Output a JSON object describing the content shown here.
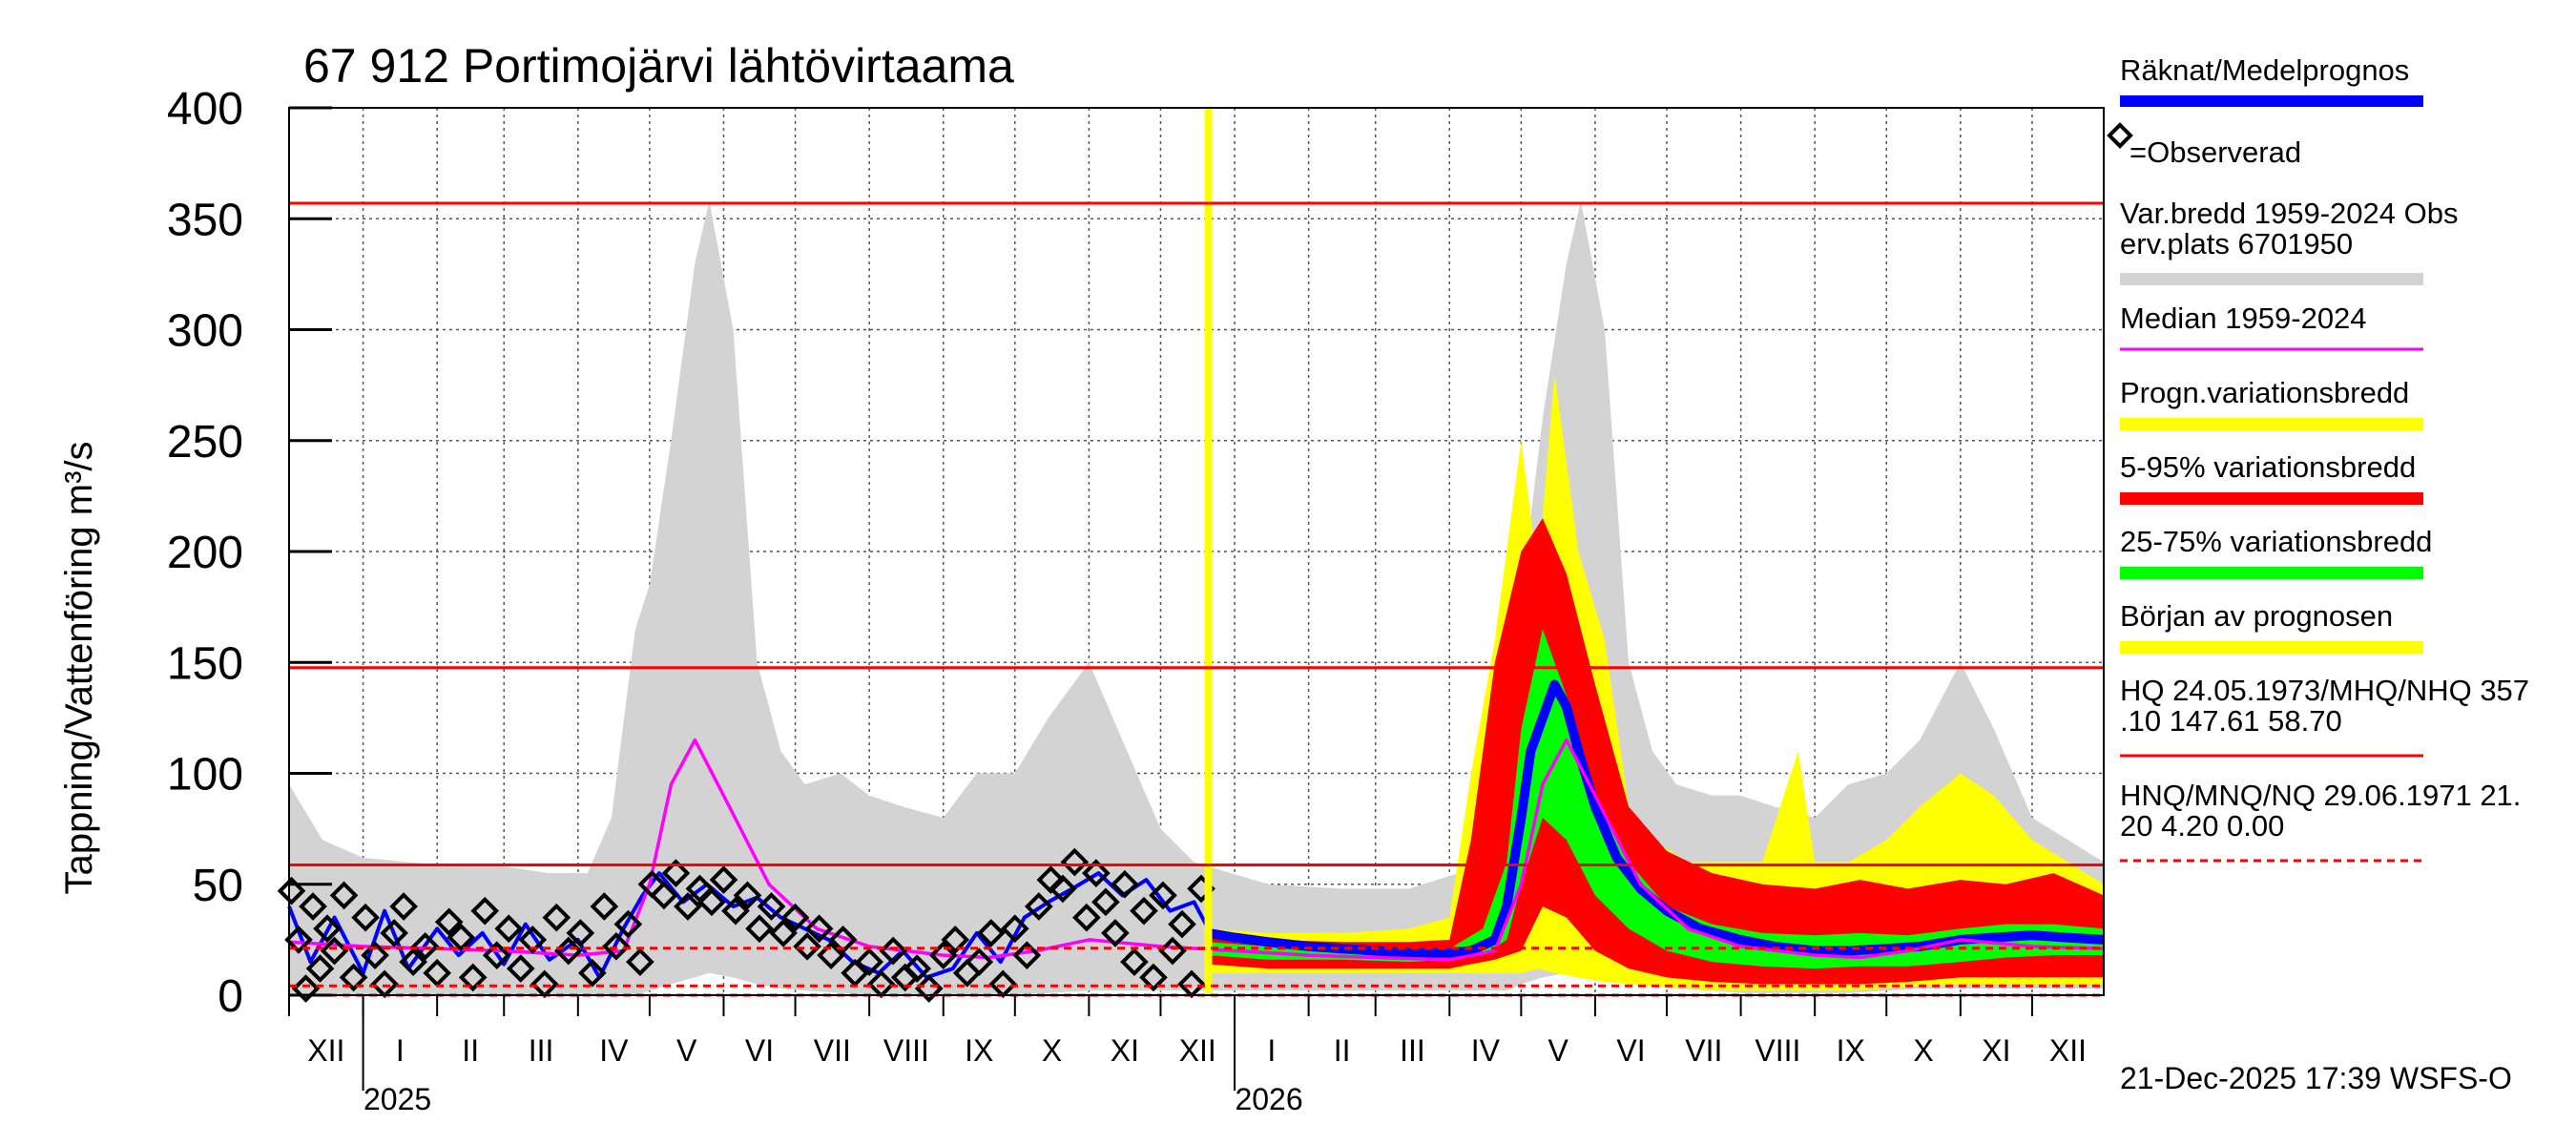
{
  "chart_data": {
    "type": "area",
    "title": "67 912 Portimojärvi lähtövirtaama",
    "ylabel": "Tappning/Vattenföring m³/s",
    "ylim": [
      0,
      400
    ],
    "y_ticks": [
      0,
      50,
      100,
      150,
      200,
      250,
      300,
      350,
      400
    ],
    "x_range": [
      "2024-12-01",
      "2026-12-31"
    ],
    "grid": true,
    "legend_position": "right",
    "months": [
      {
        "label": "XII",
        "start": "2024-12-01"
      },
      {
        "label": "I",
        "start": "2025-01-01"
      },
      {
        "label": "II",
        "start": "2025-02-01"
      },
      {
        "label": "III",
        "start": "2025-03-01"
      },
      {
        "label": "IV",
        "start": "2025-04-01"
      },
      {
        "label": "V",
        "start": "2025-05-01"
      },
      {
        "label": "VI",
        "start": "2025-06-01"
      },
      {
        "label": "VII",
        "start": "2025-07-01"
      },
      {
        "label": "VIII",
        "start": "2025-08-01"
      },
      {
        "label": "IX",
        "start": "2025-09-01"
      },
      {
        "label": "X",
        "start": "2025-10-01"
      },
      {
        "label": "XI",
        "start": "2025-11-01"
      },
      {
        "label": "XII",
        "start": "2025-12-01"
      },
      {
        "label": "I",
        "start": "2026-01-01"
      },
      {
        "label": "II",
        "start": "2026-02-01"
      },
      {
        "label": "III",
        "start": "2026-03-01"
      },
      {
        "label": "IV",
        "start": "2026-04-01"
      },
      {
        "label": "V",
        "start": "2026-05-01"
      },
      {
        "label": "VI",
        "start": "2026-06-01"
      },
      {
        "label": "VII",
        "start": "2026-07-01"
      },
      {
        "label": "VIII",
        "start": "2026-08-01"
      },
      {
        "label": "IX",
        "start": "2026-09-01"
      },
      {
        "label": "X",
        "start": "2026-10-01"
      },
      {
        "label": "XI",
        "start": "2026-11-01"
      },
      {
        "label": "XII",
        "start": "2026-12-01"
      }
    ],
    "years": [
      {
        "label": "2025",
        "date": "2025-01-01"
      },
      {
        "label": "2026",
        "date": "2026-01-01"
      }
    ],
    "forecast_start": "2025-12-21",
    "reference_lines": [
      {
        "name": "HQ",
        "value": 357,
        "style": "solid"
      },
      {
        "name": "MHQ",
        "value": 147.61,
        "style": "solid"
      },
      {
        "name": "NHQ",
        "value": 58.7,
        "style": "solid"
      },
      {
        "name": "HNQ",
        "value": 21.2,
        "style": "dashed"
      },
      {
        "name": "MNQ",
        "value": 4.2,
        "style": "dashed"
      },
      {
        "name": "NQ",
        "value": 0.0,
        "style": "dashed"
      }
    ],
    "historical_range": {
      "x": [
        "2024-12-01",
        "2024-12-15",
        "2025-01-01",
        "2025-01-20",
        "2025-02-10",
        "2025-03-01",
        "2025-03-20",
        "2025-04-05",
        "2025-04-15",
        "2025-04-25",
        "2025-05-01",
        "2025-05-10",
        "2025-05-20",
        "2025-05-26",
        "2025-06-05",
        "2025-06-15",
        "2025-06-25",
        "2025-07-05",
        "2025-07-20",
        "2025-08-01",
        "2025-08-15",
        "2025-09-01",
        "2025-09-15",
        "2025-10-01",
        "2025-10-15",
        "2025-11-01",
        "2025-11-15",
        "2025-12-01",
        "2025-12-15",
        "2026-01-15",
        "2026-02-15",
        "2026-03-15",
        "2026-04-05",
        "2026-04-15",
        "2026-04-25",
        "2026-05-01",
        "2026-05-10",
        "2026-05-20",
        "2026-05-26",
        "2026-06-05",
        "2026-06-15",
        "2026-06-25",
        "2026-07-05",
        "2026-07-20",
        "2026-08-01",
        "2026-08-15",
        "2026-09-01",
        "2026-09-15",
        "2026-10-01",
        "2026-10-15",
        "2026-11-01",
        "2026-11-15",
        "2026-12-01",
        "2026-12-31"
      ],
      "upper": [
        95,
        70,
        62,
        60,
        58,
        58,
        55,
        55,
        80,
        165,
        185,
        250,
        330,
        358,
        300,
        150,
        110,
        95,
        100,
        90,
        85,
        80,
        100,
        100,
        125,
        150,
        115,
        75,
        60,
        50,
        48,
        48,
        55,
        85,
        150,
        180,
        260,
        330,
        358,
        300,
        150,
        110,
        95,
        90,
        90,
        85,
        80,
        95,
        100,
        115,
        150,
        120,
        80,
        60
      ],
      "lower": [
        0,
        0,
        0,
        0,
        0,
        0,
        0,
        0,
        0,
        0,
        2,
        5,
        8,
        10,
        8,
        5,
        3,
        2,
        1,
        0,
        0,
        0,
        0,
        0,
        1,
        2,
        2,
        2,
        2,
        2,
        2,
        2,
        2,
        2,
        2,
        5,
        8,
        10,
        12,
        10,
        8,
        5,
        3,
        2,
        1,
        1,
        1,
        1,
        2,
        3,
        3,
        3,
        3,
        3
      ]
    },
    "median": {
      "x": [
        "2024-12-01",
        "2025-01-01",
        "2025-02-01",
        "2025-03-01",
        "2025-04-01",
        "2025-04-20",
        "2025-05-01",
        "2025-05-10",
        "2025-05-20",
        "2025-06-01",
        "2025-06-20",
        "2025-07-10",
        "2025-08-01",
        "2025-09-01",
        "2025-09-20",
        "2025-10-10",
        "2025-11-01",
        "2025-12-01",
        "2026-01-01",
        "2026-02-01",
        "2026-03-01",
        "2026-04-01",
        "2026-04-20",
        "2026-05-01",
        "2026-05-10",
        "2026-05-20",
        "2026-06-01",
        "2026-06-20",
        "2026-07-10",
        "2026-08-01",
        "2026-09-01",
        "2026-09-20",
        "2026-10-10",
        "2026-11-01",
        "2026-12-01",
        "2026-12-31"
      ],
      "values": [
        24,
        22,
        21,
        20,
        18,
        20,
        50,
        95,
        115,
        90,
        50,
        30,
        22,
        18,
        17,
        20,
        25,
        22,
        20,
        18,
        17,
        16,
        20,
        50,
        95,
        115,
        90,
        50,
        30,
        22,
        18,
        17,
        20,
        25,
        22,
        21
      ]
    },
    "forecast_bands": [
      {
        "name": "Progn.variationsbredd",
        "color": "#ffff00",
        "x": [
          "2025-12-21",
          "2026-01-15",
          "2026-02-15",
          "2026-03-15",
          "2026-04-01",
          "2026-04-10",
          "2026-04-20",
          "2026-05-01",
          "2026-05-08",
          "2026-05-15",
          "2026-05-25",
          "2026-06-05",
          "2026-06-15",
          "2026-06-25",
          "2026-07-10",
          "2026-07-25",
          "2026-08-10",
          "2026-08-25",
          "2026-09-01",
          "2026-09-15",
          "2026-10-01",
          "2026-10-15",
          "2026-11-01",
          "2026-11-15",
          "2026-12-01",
          "2026-12-31"
        ],
        "upper": [
          30,
          28,
          28,
          30,
          35,
          100,
          160,
          250,
          190,
          280,
          200,
          160,
          85,
          70,
          60,
          60,
          60,
          110,
          60,
          60,
          70,
          85,
          100,
          90,
          70,
          50
        ],
        "lower": [
          10,
          10,
          10,
          10,
          10,
          10,
          10,
          10,
          12,
          10,
          8,
          6,
          5,
          4,
          3,
          2,
          2,
          2,
          2,
          2,
          3,
          4,
          5,
          5,
          5,
          5
        ]
      },
      {
        "name": "5-95% variationsbredd",
        "color": "#ff0000",
        "x": [
          "2025-12-21",
          "2026-01-15",
          "2026-02-15",
          "2026-03-15",
          "2026-04-01",
          "2026-04-10",
          "2026-04-20",
          "2026-05-01",
          "2026-05-10",
          "2026-05-20",
          "2026-06-01",
          "2026-06-15",
          "2026-07-01",
          "2026-07-20",
          "2026-08-10",
          "2026-09-01",
          "2026-09-20",
          "2026-10-10",
          "2026-11-01",
          "2026-11-20",
          "2026-12-10",
          "2026-12-31"
        ],
        "upper": [
          28,
          25,
          24,
          24,
          25,
          70,
          150,
          200,
          215,
          190,
          140,
          85,
          65,
          55,
          50,
          48,
          52,
          48,
          52,
          50,
          55,
          45
        ],
        "lower": [
          14,
          12,
          12,
          12,
          12,
          14,
          16,
          20,
          40,
          35,
          20,
          12,
          8,
          6,
          5,
          5,
          5,
          6,
          8,
          8,
          8,
          8
        ]
      },
      {
        "name": "25-75% variationsbredd",
        "color": "#00ff00",
        "x": [
          "2025-12-21",
          "2026-01-15",
          "2026-02-15",
          "2026-03-15",
          "2026-04-01",
          "2026-04-15",
          "2026-04-25",
          "2026-05-01",
          "2026-05-10",
          "2026-05-20",
          "2026-06-01",
          "2026-06-15",
          "2026-07-01",
          "2026-07-20",
          "2026-08-10",
          "2026-09-01",
          "2026-09-20",
          "2026-10-10",
          "2026-11-01",
          "2026-11-20",
          "2026-12-10",
          "2026-12-31"
        ],
        "upper": [
          24,
          22,
          21,
          20,
          21,
          30,
          60,
          120,
          165,
          135,
          90,
          60,
          40,
          32,
          28,
          27,
          28,
          27,
          30,
          32,
          32,
          30
        ],
        "lower": [
          18,
          16,
          16,
          15,
          16,
          18,
          25,
          50,
          80,
          70,
          45,
          30,
          20,
          15,
          13,
          12,
          13,
          13,
          15,
          17,
          18,
          18
        ]
      }
    ],
    "computed_forecast": {
      "name": "Räknat/Medelprognos",
      "x": [
        "2025-12-21",
        "2026-01-01",
        "2026-01-15",
        "2026-02-01",
        "2026-02-15",
        "2026-03-01",
        "2026-03-15",
        "2026-04-01",
        "2026-04-10",
        "2026-04-20",
        "2026-04-25",
        "2026-05-01",
        "2026-05-05",
        "2026-05-10",
        "2026-05-15",
        "2026-05-20",
        "2026-05-25",
        "2026-06-01",
        "2026-06-10",
        "2026-06-20",
        "2026-07-01",
        "2026-07-15",
        "2026-08-01",
        "2026-08-15",
        "2026-09-01",
        "2026-09-15",
        "2026-10-01",
        "2026-10-15",
        "2026-11-01",
        "2026-11-15",
        "2026-12-01",
        "2026-12-15",
        "2026-12-31"
      ],
      "values": [
        28,
        26,
        24,
        22,
        21,
        20,
        19,
        19,
        20,
        25,
        40,
        80,
        110,
        125,
        140,
        130,
        110,
        85,
        62,
        48,
        38,
        30,
        25,
        22,
        20,
        20,
        21,
        22,
        25,
        26,
        27,
        26,
        25
      ]
    },
    "observed_line": {
      "name": "Räknat",
      "x": [
        "2024-12-01",
        "2024-12-10",
        "2024-12-20",
        "2025-01-01",
        "2025-01-10",
        "2025-01-20",
        "2025-02-01",
        "2025-02-10",
        "2025-02-20",
        "2025-03-01",
        "2025-03-10",
        "2025-03-20",
        "2025-04-01",
        "2025-04-10",
        "2025-04-20",
        "2025-04-28",
        "2025-05-05",
        "2025-05-15",
        "2025-05-25",
        "2025-06-05",
        "2025-06-15",
        "2025-06-25",
        "2025-07-05",
        "2025-07-15",
        "2025-07-25",
        "2025-08-05",
        "2025-08-15",
        "2025-08-25",
        "2025-09-05",
        "2025-09-15",
        "2025-09-25",
        "2025-10-05",
        "2025-10-15",
        "2025-10-25",
        "2025-11-05",
        "2025-11-15",
        "2025-11-25",
        "2025-12-05",
        "2025-12-15",
        "2025-12-21"
      ],
      "values": [
        40,
        15,
        35,
        10,
        38,
        12,
        30,
        18,
        28,
        14,
        32,
        16,
        25,
        8,
        30,
        45,
        55,
        42,
        50,
        40,
        44,
        35,
        30,
        25,
        15,
        10,
        20,
        8,
        12,
        28,
        15,
        35,
        42,
        48,
        55,
        45,
        52,
        38,
        42,
        30
      ]
    },
    "observed_points": {
      "name": "Observerad",
      "x": [
        "2024-12-02",
        "2024-12-05",
        "2024-12-08",
        "2024-12-11",
        "2024-12-14",
        "2024-12-17",
        "2024-12-20",
        "2024-12-24",
        "2024-12-28",
        "2025-01-02",
        "2025-01-06",
        "2025-01-10",
        "2025-01-14",
        "2025-01-18",
        "2025-01-22",
        "2025-01-27",
        "2025-02-01",
        "2025-02-06",
        "2025-02-11",
        "2025-02-16",
        "2025-02-21",
        "2025-02-26",
        "2025-03-03",
        "2025-03-08",
        "2025-03-13",
        "2025-03-18",
        "2025-03-23",
        "2025-03-28",
        "2025-04-02",
        "2025-04-07",
        "2025-04-12",
        "2025-04-17",
        "2025-04-22",
        "2025-04-27",
        "2025-05-02",
        "2025-05-07",
        "2025-05-12",
        "2025-05-17",
        "2025-05-22",
        "2025-05-27",
        "2025-06-01",
        "2025-06-06",
        "2025-06-11",
        "2025-06-16",
        "2025-06-21",
        "2025-06-26",
        "2025-07-01",
        "2025-07-06",
        "2025-07-11",
        "2025-07-16",
        "2025-07-21",
        "2025-07-26",
        "2025-08-01",
        "2025-08-06",
        "2025-08-11",
        "2025-08-16",
        "2025-08-21",
        "2025-08-26",
        "2025-09-01",
        "2025-09-06",
        "2025-09-11",
        "2025-09-16",
        "2025-09-21",
        "2025-09-26",
        "2025-10-01",
        "2025-10-06",
        "2025-10-11",
        "2025-10-16",
        "2025-10-21",
        "2025-10-26",
        "2025-10-31",
        "2025-11-04",
        "2025-11-08",
        "2025-11-12",
        "2025-11-16",
        "2025-11-20",
        "2025-11-24",
        "2025-11-28",
        "2025-12-02",
        "2025-12-06",
        "2025-12-10",
        "2025-12-14",
        "2025-12-18"
      ],
      "values": [
        47,
        25,
        3,
        40,
        12,
        30,
        20,
        45,
        8,
        35,
        18,
        5,
        28,
        40,
        15,
        22,
        10,
        33,
        26,
        8,
        38,
        18,
        30,
        12,
        25,
        5,
        35,
        20,
        28,
        10,
        40,
        22,
        32,
        15,
        50,
        45,
        55,
        40,
        48,
        42,
        52,
        38,
        45,
        30,
        40,
        28,
        35,
        22,
        30,
        18,
        25,
        10,
        15,
        5,
        20,
        8,
        12,
        3,
        18,
        25,
        10,
        15,
        28,
        5,
        30,
        18,
        40,
        52,
        48,
        60,
        35,
        55,
        42,
        28,
        50,
        15,
        38,
        8,
        45,
        20,
        32,
        5,
        48
      ]
    },
    "legend": [
      {
        "label": "Räknat/Medelprognos",
        "color": "#0000ff",
        "style": "line"
      },
      {
        "label": "=Observerad",
        "style": "marker"
      },
      {
        "label": "Var.bredd 1959-2024   Obs",
        "label2": "erv.plats 6701950",
        "color": "#d3d3d3",
        "style": "band"
      },
      {
        "label": "Median 1959-2024",
        "color": "#ff00ff",
        "style": "line"
      },
      {
        "label": "Progn.variationsbredd",
        "color": "#ffff00",
        "style": "band"
      },
      {
        "label": "5-95% variationsbredd",
        "color": "#ff0000",
        "style": "band"
      },
      {
        "label": "25-75% variationsbredd",
        "color": "#00ff00",
        "style": "band"
      },
      {
        "label": "Början av prognosen",
        "color": "#ffff00",
        "style": "band"
      },
      {
        "label": "HQ 24.05.1973/MHQ/NHQ 357",
        "label2": ".10 147.61 58.70",
        "color": "#ff0000",
        "style": "line"
      },
      {
        "label": "HNQ/MNQ/NQ 29.06.1971 21.",
        "label2": "20 4.20 0.00",
        "color": "#ff0000",
        "style": "dashed"
      }
    ],
    "footer": "21-Dec-2025 17:39 WSFS-O"
  }
}
